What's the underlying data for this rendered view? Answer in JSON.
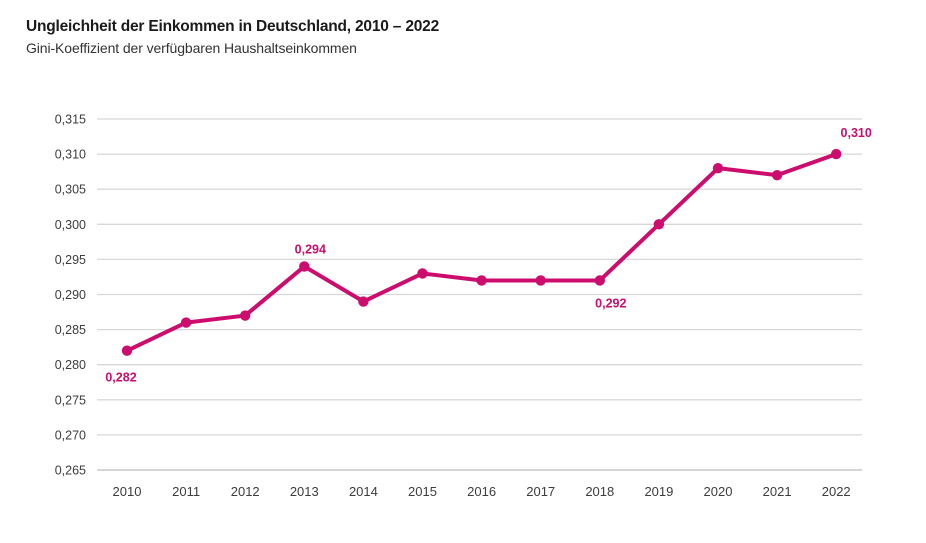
{
  "header": {
    "title": "Ungleichheit der Einkommen in Deutschland, 2010 – 2022",
    "subtitle": "Gini-Koeffizient der verfügbaren Haushaltseinkommen"
  },
  "colors": {
    "line": "#cc0d6e",
    "gridline": "#d8d8d8",
    "baseline": "#bdbdbd",
    "axis_text": "#3d3d3d",
    "title_text": "#1a1a1a"
  },
  "chart_data": {
    "type": "line",
    "title": "Ungleichheit der Einkommen in Deutschland, 2010 – 2022",
    "subtitle": "Gini-Koeffizient der verfügbaren Haushaltseinkommen",
    "xlabel": "",
    "ylabel": "",
    "x": [
      "2010",
      "2011",
      "2012",
      "2013",
      "2014",
      "2015",
      "2016",
      "2017",
      "2018",
      "2019",
      "2020",
      "2021",
      "2022"
    ],
    "series": [
      {
        "name": "Gini-Koeffizient der verfügbaren Haushaltseinkommen",
        "values": [
          0.282,
          0.286,
          0.287,
          0.294,
          0.289,
          0.293,
          0.292,
          0.292,
          0.292,
          0.3,
          0.308,
          0.307,
          0.31
        ]
      }
    ],
    "ylim": [
      0.265,
      0.315
    ],
    "ytick_step": 0.005,
    "yticks": [
      {
        "value": 0.315,
        "label": "0,315"
      },
      {
        "value": 0.31,
        "label": "0,310"
      },
      {
        "value": 0.305,
        "label": "0,305"
      },
      {
        "value": 0.3,
        "label": "0,300"
      },
      {
        "value": 0.295,
        "label": "0,295"
      },
      {
        "value": 0.29,
        "label": "0,290"
      },
      {
        "value": 0.285,
        "label": "0,285"
      },
      {
        "value": 0.28,
        "label": "0,280"
      },
      {
        "value": 0.275,
        "label": "0,275"
      },
      {
        "value": 0.27,
        "label": "0,270"
      },
      {
        "value": 0.265,
        "label": "0,265"
      }
    ],
    "grid": "horizontal",
    "legend": "none",
    "point_labels": [
      {
        "x": "2010",
        "label": "0,282",
        "position": "below-left"
      },
      {
        "x": "2013",
        "label": "0,294",
        "position": "above"
      },
      {
        "x": "2018",
        "label": "0,292",
        "position": "below"
      },
      {
        "x": "2022",
        "label": "0,310",
        "position": "above-right"
      }
    ]
  }
}
